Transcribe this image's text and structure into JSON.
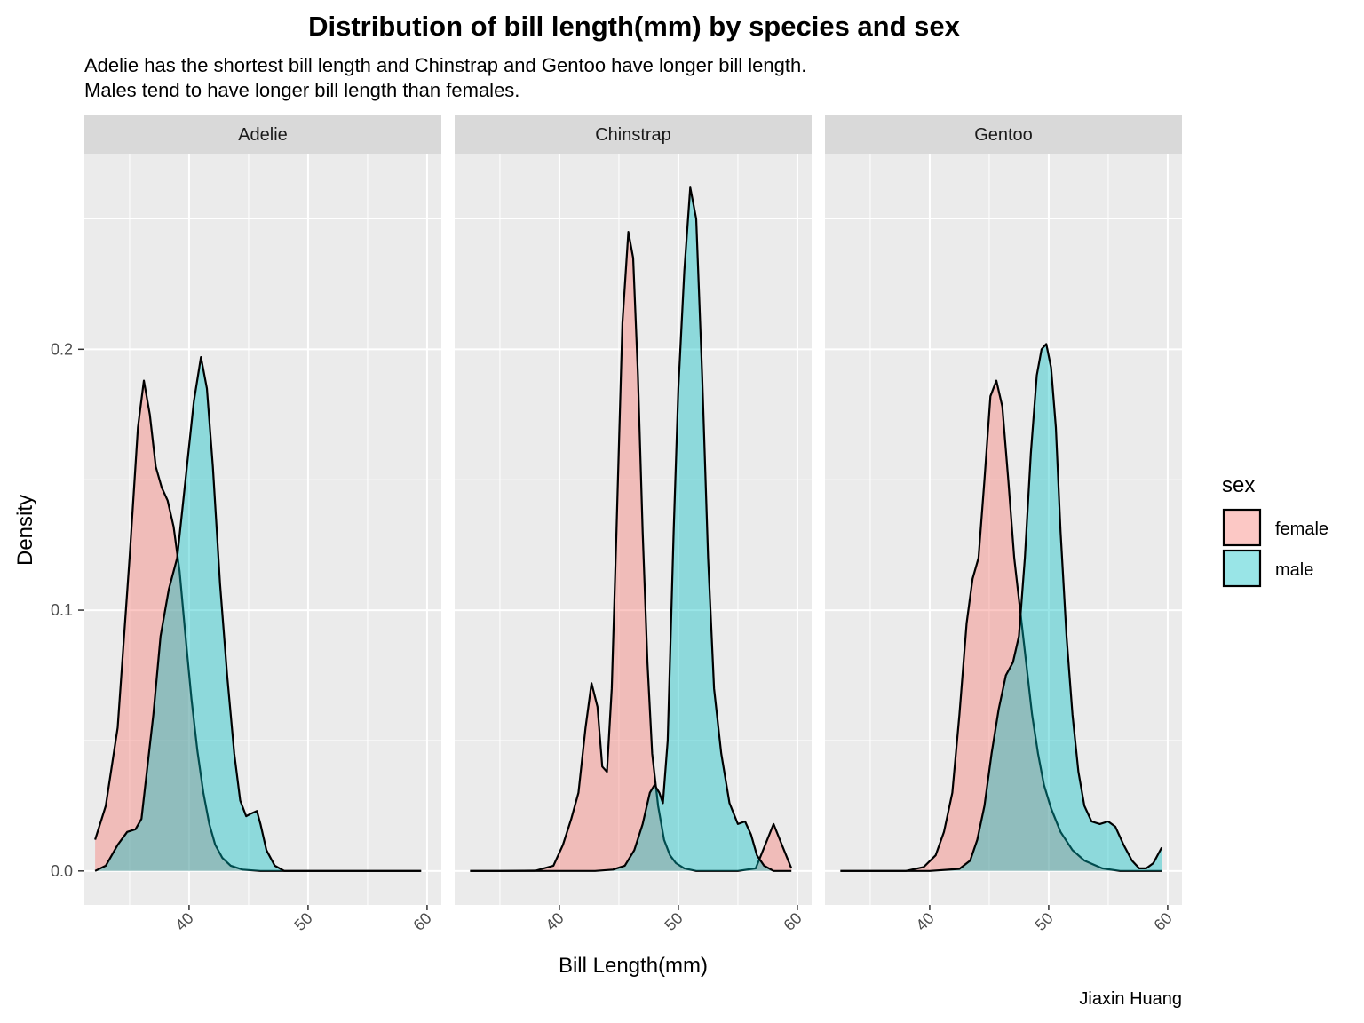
{
  "chart_data": {
    "type": "area",
    "title": "Distribution of bill length(mm) by species and sex",
    "subtitle_lines": [
      "Adelie has the shortest bill length and Chinstrap and Gentoo have longer bill length.",
      "Males tend to have longer bill length than females."
    ],
    "xlabel": "Bill Length(mm)",
    "ylabel": "Density",
    "caption": "Jiaxin Huang",
    "xlim": [
      31.2,
      61.2
    ],
    "ylim": [
      -0.013,
      0.275
    ],
    "x_ticks": [
      40,
      50,
      60
    ],
    "x_tick_labels": [
      "40",
      "50",
      "60"
    ],
    "y_ticks": [
      0.0,
      0.1,
      0.2
    ],
    "y_tick_labels": [
      "0.0",
      "0.1",
      "0.2"
    ],
    "grid": true,
    "legend": {
      "title": "sex",
      "position": "right",
      "entries": [
        {
          "label": "female",
          "color": "#F8766D"
        },
        {
          "label": "male",
          "color": "#00BFC4"
        }
      ]
    },
    "panels": [
      {
        "name": "Adelie",
        "series": [
          {
            "name": "female",
            "color": "#F8766D",
            "x": [
              32.1,
              33.0,
              34.0,
              35.0,
              35.7,
              36.2,
              36.7,
              37.2,
              37.7,
              38.2,
              38.7,
              39.2,
              39.7,
              40.2,
              40.7,
              41.2,
              41.7,
              42.2,
              42.8,
              43.5,
              44.5,
              46.0,
              48.0,
              50.0,
              52.0,
              55.0,
              59.5
            ],
            "y": [
              0.012,
              0.025,
              0.055,
              0.12,
              0.17,
              0.188,
              0.175,
              0.155,
              0.147,
              0.142,
              0.132,
              0.115,
              0.09,
              0.066,
              0.046,
              0.03,
              0.018,
              0.01,
              0.005,
              0.002,
              0.0005,
              0.0,
              0.0,
              0.0,
              0.0,
              0.0,
              0.0
            ]
          },
          {
            "name": "male",
            "color": "#00BFC4",
            "x": [
              32.1,
              33.0,
              34.0,
              34.8,
              35.5,
              36.0,
              37.0,
              37.6,
              38.3,
              39.0,
              39.7,
              40.4,
              41.0,
              41.5,
              42.0,
              42.6,
              43.2,
              43.8,
              44.3,
              44.8,
              45.2,
              45.7,
              46.0,
              46.5,
              47.2,
              48.0,
              50.0,
              55.0,
              59.5
            ],
            "y": [
              0.0,
              0.002,
              0.01,
              0.015,
              0.016,
              0.02,
              0.06,
              0.09,
              0.108,
              0.12,
              0.15,
              0.18,
              0.197,
              0.185,
              0.155,
              0.11,
              0.075,
              0.045,
              0.027,
              0.021,
              0.022,
              0.023,
              0.018,
              0.008,
              0.002,
              0.0,
              0.0,
              0.0,
              0.0
            ]
          }
        ]
      },
      {
        "name": "Chinstrap",
        "series": [
          {
            "name": "female",
            "color": "#F8766D",
            "x": [
              32.5,
              35.0,
              38.0,
              39.5,
              40.3,
              41.0,
              41.6,
              42.2,
              42.7,
              43.2,
              43.6,
              44.0,
              44.4,
              44.8,
              45.3,
              45.8,
              46.2,
              46.6,
              47.0,
              47.4,
              47.8,
              48.3,
              48.8,
              49.3,
              49.8,
              50.5,
              51.5,
              53.0,
              55.0,
              56.5,
              57.3,
              58.0,
              58.7,
              59.5
            ],
            "y": [
              0.0,
              0.0,
              0.0001,
              0.002,
              0.01,
              0.02,
              0.03,
              0.055,
              0.072,
              0.063,
              0.04,
              0.038,
              0.07,
              0.13,
              0.21,
              0.245,
              0.235,
              0.19,
              0.13,
              0.08,
              0.045,
              0.025,
              0.012,
              0.006,
              0.003,
              0.001,
              0.0,
              0.0,
              0.0,
              0.001,
              0.01,
              0.018,
              0.01,
              0.001
            ]
          },
          {
            "name": "male",
            "color": "#00BFC4",
            "x": [
              32.5,
              40.0,
              43.0,
              44.5,
              45.5,
              46.3,
              47.0,
              47.6,
              48.0,
              48.4,
              48.7,
              49.1,
              49.6,
              50.0,
              50.5,
              51.0,
              51.5,
              52.0,
              52.5,
              53.0,
              53.6,
              54.3,
              55.0,
              55.6,
              56.1,
              56.6,
              57.2,
              58.0,
              59.5
            ],
            "y": [
              0.0,
              0.0,
              0.0,
              0.0005,
              0.002,
              0.008,
              0.018,
              0.03,
              0.033,
              0.03,
              0.026,
              0.05,
              0.13,
              0.185,
              0.23,
              0.262,
              0.25,
              0.19,
              0.12,
              0.07,
              0.045,
              0.026,
              0.018,
              0.019,
              0.014,
              0.006,
              0.002,
              0.0,
              0.0
            ]
          }
        ]
      },
      {
        "name": "Gentoo",
        "series": [
          {
            "name": "female",
            "color": "#F8766D",
            "x": [
              32.5,
              38.0,
              39.5,
              40.5,
              41.2,
              41.9,
              42.5,
              43.1,
              43.6,
              44.1,
              44.6,
              45.1,
              45.6,
              46.1,
              46.6,
              47.1,
              47.6,
              48.1,
              48.6,
              49.1,
              49.6,
              50.2,
              51.0,
              52.0,
              53.0,
              54.5,
              56.0,
              59.5
            ],
            "y": [
              0.0,
              0.0,
              0.0015,
              0.006,
              0.015,
              0.03,
              0.06,
              0.095,
              0.112,
              0.12,
              0.15,
              0.182,
              0.188,
              0.178,
              0.15,
              0.12,
              0.1,
              0.08,
              0.06,
              0.045,
              0.033,
              0.024,
              0.015,
              0.008,
              0.004,
              0.001,
              0.0,
              0.0
            ]
          },
          {
            "name": "male",
            "color": "#00BFC4",
            "x": [
              32.5,
              40.0,
              42.5,
              43.4,
              44.0,
              44.6,
              45.2,
              45.8,
              46.4,
              47.0,
              47.5,
              48.0,
              48.5,
              49.0,
              49.4,
              49.8,
              50.2,
              50.6,
              51.0,
              51.5,
              52.0,
              52.5,
              53.0,
              53.6,
              54.3,
              55.0,
              55.6,
              56.3,
              57.0,
              57.6,
              58.2,
              58.8,
              59.5
            ],
            "y": [
              0.0,
              0.0,
              0.0008,
              0.004,
              0.012,
              0.025,
              0.045,
              0.062,
              0.075,
              0.08,
              0.09,
              0.12,
              0.16,
              0.19,
              0.2,
              0.202,
              0.193,
              0.17,
              0.13,
              0.09,
              0.06,
              0.038,
              0.025,
              0.019,
              0.018,
              0.019,
              0.017,
              0.01,
              0.004,
              0.001,
              0.001,
              0.003,
              0.009
            ]
          }
        ]
      }
    ]
  }
}
